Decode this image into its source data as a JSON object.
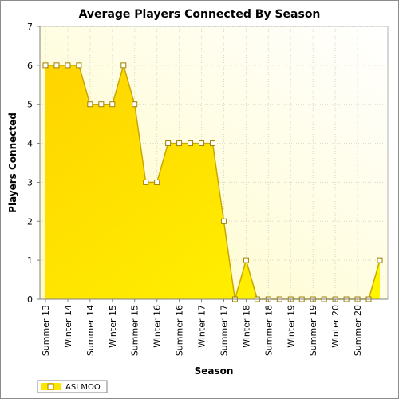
{
  "chart_data": {
    "type": "area",
    "title": "Average Players Connected By Season",
    "xlabel": "Season",
    "ylabel": "Players Connected",
    "ylim": [
      0,
      7
    ],
    "yticks": [
      0,
      1,
      2,
      3,
      4,
      5,
      6,
      7
    ],
    "x_tick_labels": [
      "Summer 13",
      "Winter 14",
      "Summer 14",
      "Winter 15",
      "Summer 15",
      "Winter 16",
      "Summer 16",
      "Winter 17",
      "Summer 17",
      "Winter 18",
      "Summer 18",
      "Winter 19",
      "Summer 19",
      "Winter 20",
      "Summer 20"
    ],
    "grid": true,
    "legend_position": "bottom-left",
    "series": [
      {
        "name": "ASI MOO",
        "color": "#ffe600",
        "values": [
          6,
          6,
          6,
          6,
          5,
          5,
          5,
          6,
          5,
          3,
          3,
          4,
          4,
          4,
          4,
          4,
          2,
          0,
          1,
          0,
          0,
          0,
          0,
          0,
          0,
          0,
          0,
          0,
          0,
          0,
          1
        ]
      }
    ]
  }
}
